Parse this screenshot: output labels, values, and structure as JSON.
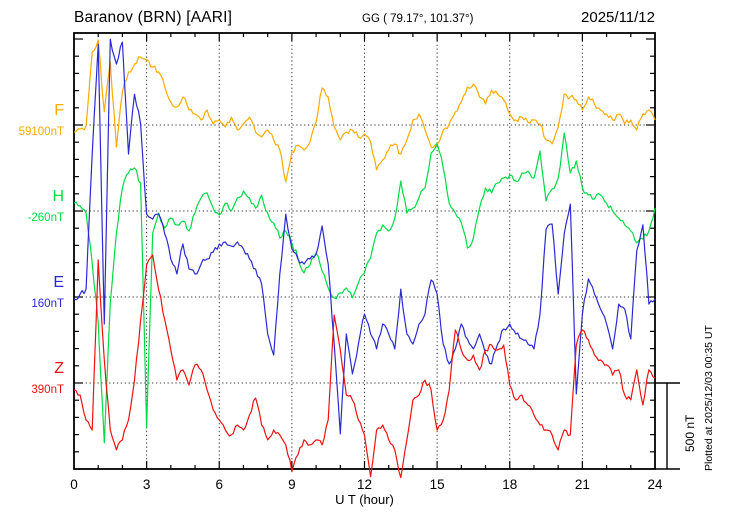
{
  "header": {
    "station_title": "Baranov (BRN)  [AARI]",
    "gg_coords": "GG ( 79.17°, 101.37°)",
    "date": "2025/11/12"
  },
  "x_axis": {
    "title": "U T (hour)",
    "tick_labels": [
      "0",
      "3",
      "6",
      "9",
      "12",
      "15",
      "18",
      "21",
      "24"
    ]
  },
  "scale_bar": {
    "label": "500 nT",
    "span_nT": 500
  },
  "footer_note": "Plotted at 2025/12/03 00:35 UT",
  "chart_data": {
    "type": "line",
    "title": "Baranov (BRN) [AARI] magnetogram, 2025/11/12",
    "xlabel": "U T (hour)",
    "x_range_hours": [
      0,
      24
    ],
    "x": {
      "start_hour": 0,
      "step_hour": 0.25,
      "count": 97
    },
    "grid": {
      "x_dotted_every_hours": 3,
      "y_dotted_at_component_baselines": true
    },
    "scale_nT_per_division": 500,
    "legend_position": "left-margin",
    "series": [
      {
        "name": "F",
        "units": "nT",
        "baseline_label": "59100nT",
        "baseline_nT": 59100,
        "color": "#ffaa00",
        "values": [
          59059,
          59077,
          59094,
          59524,
          59594,
          59176,
          59466,
          58972,
          59292,
          59408,
          59454,
          59495,
          59478,
          59437,
          59408,
          59321,
          59234,
          59205,
          59263,
          59187,
          59164,
          59129,
          59187,
          59106,
          59129,
          59088,
          59146,
          59071,
          59106,
          59146,
          59059,
          59030,
          59071,
          59013,
          58955,
          58769,
          58943,
          58984,
          58955,
          59001,
          59117,
          59315,
          59263,
          59088,
          59013,
          59059,
          59071,
          59030,
          59048,
          59001,
          58839,
          58897,
          58955,
          58990,
          58932,
          59013,
          59129,
          59164,
          59071,
          58972,
          58990,
          59071,
          59106,
          59176,
          59234,
          59321,
          59338,
          59263,
          59222,
          59303,
          59280,
          59245,
          59164,
          59129,
          59146,
          59117,
          59129,
          59106,
          59013,
          58990,
          59088,
          59280,
          59263,
          59245,
          59187,
          59263,
          59222,
          59187,
          59164,
          59129,
          59164,
          59106,
          59129,
          59071,
          59164,
          59187,
          59129
        ]
      },
      {
        "name": "H",
        "units": "nT",
        "baseline_label": "-260nT",
        "baseline_nT": -260,
        "color": "#00db46",
        "values": [
          -214,
          -231,
          -272,
          -562,
          -911,
          -1608,
          -795,
          -388,
          -126,
          -39,
          -10,
          -97,
          -1521,
          -388,
          -272,
          -359,
          -301,
          -341,
          -318,
          -376,
          -272,
          -184,
          -155,
          -243,
          -283,
          -214,
          -260,
          -184,
          -144,
          -184,
          -243,
          -167,
          -272,
          -330,
          -417,
          -376,
          -446,
          -533,
          -620,
          -574,
          -504,
          -609,
          -707,
          -765,
          -736,
          -707,
          -765,
          -678,
          -620,
          -533,
          -388,
          -341,
          -376,
          -301,
          -86,
          -272,
          -243,
          -184,
          -126,
          77,
          135,
          -10,
          -214,
          -272,
          -330,
          -475,
          -417,
          -243,
          -126,
          -155,
          -97,
          -68,
          -51,
          -86,
          -39,
          -28,
          -68,
          89,
          -202,
          -132,
          -68,
          193,
          -39,
          31,
          -126,
          -167,
          -190,
          -167,
          -214,
          -260,
          -301,
          -341,
          -376,
          -446,
          -423,
          -376,
          -243
        ]
      },
      {
        "name": "E",
        "units": "nT",
        "baseline_label": "160nT",
        "baseline_nT": 160,
        "color": "#2a2ad2",
        "values": [
          148,
          177,
          206,
          991,
          1630,
          3,
          1659,
          1514,
          1642,
          991,
          1339,
          1165,
          642,
          613,
          642,
          526,
          381,
          294,
          468,
          323,
          294,
          352,
          381,
          421,
          468,
          480,
          456,
          480,
          439,
          381,
          323,
          236,
          -55,
          -177,
          294,
          642,
          439,
          381,
          352,
          381,
          410,
          573,
          352,
          -113,
          -636,
          -55,
          -287,
          -113,
          61,
          -55,
          -142,
          3,
          -55,
          -142,
          206,
          -55,
          -113,
          3,
          61,
          259,
          177,
          -113,
          -229,
          -142,
          3,
          -84,
          -142,
          -55,
          -171,
          -229,
          -113,
          -26,
          3,
          -55,
          -84,
          -113,
          -142,
          61,
          555,
          584,
          177,
          526,
          700,
          -404,
          61,
          265,
          177,
          90,
          3,
          -142,
          119,
          90,
          -84,
          430,
          580,
          119,
          148
        ]
      },
      {
        "name": "Z",
        "units": "nT",
        "baseline_label": "390nT",
        "baseline_nT": 390,
        "color": "#ee1111",
        "values": [
          349,
          320,
          175,
          117,
          1105,
          524,
          117,
          1,
          59,
          175,
          407,
          756,
          1076,
          1134,
          930,
          756,
          582,
          407,
          466,
          378,
          495,
          466,
          349,
          233,
          175,
          117,
          88,
          146,
          117,
          204,
          303,
          146,
          59,
          117,
          88,
          30,
          -125,
          -28,
          59,
          30,
          59,
          30,
          175,
          785,
          582,
          320,
          291,
          175,
          88,
          -155,
          117,
          146,
          59,
          1,
          -160,
          59,
          291,
          320,
          407,
          349,
          117,
          175,
          349,
          698,
          582,
          524,
          553,
          466,
          582,
          611,
          582,
          611,
          378,
          291,
          320,
          262,
          204,
          146,
          117,
          88,
          1,
          117,
          88,
          611,
          698,
          640,
          553,
          524,
          495,
          436,
          466,
          320,
          291,
          466,
          262,
          466,
          419
        ]
      }
    ]
  }
}
